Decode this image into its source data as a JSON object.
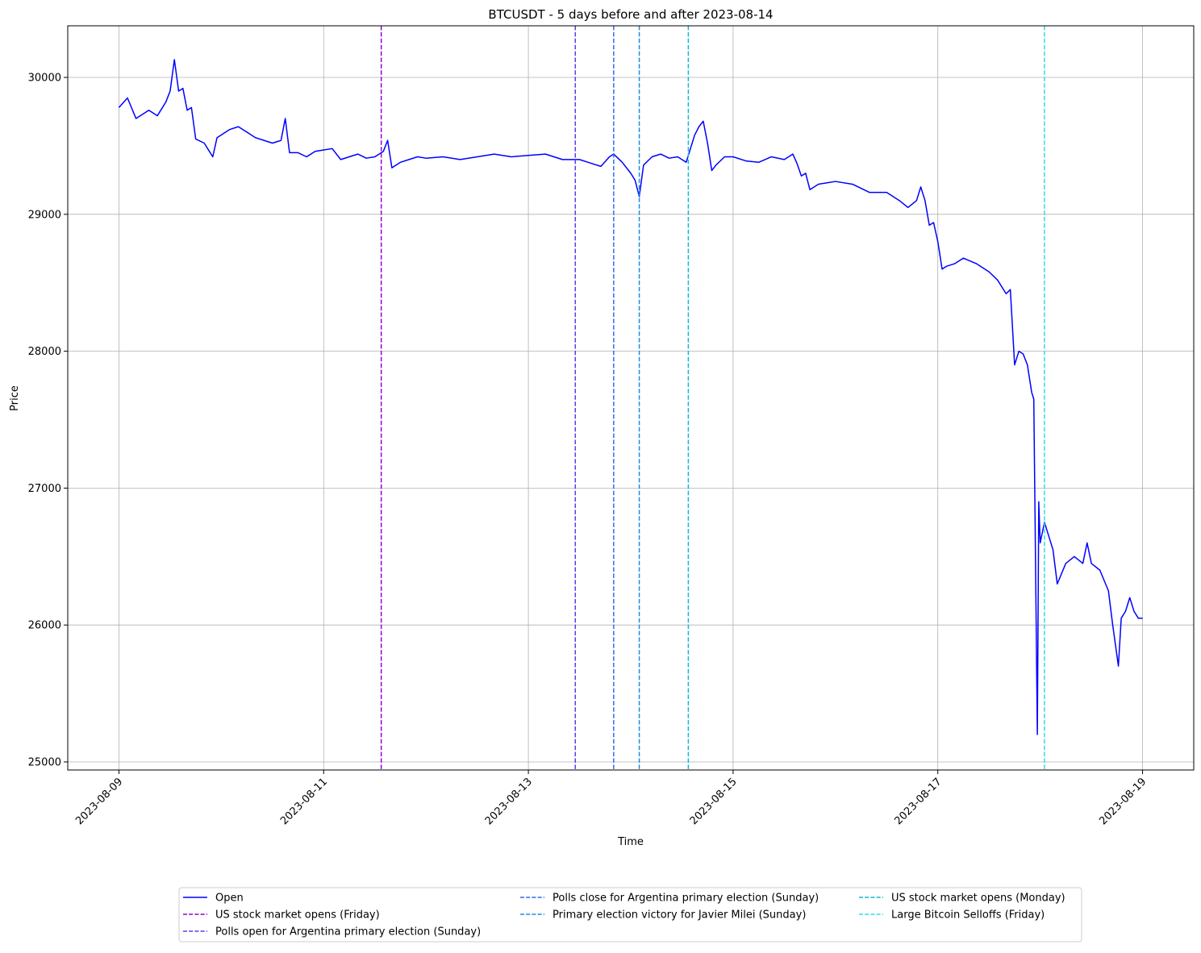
{
  "chart_data": {
    "type": "line",
    "title": "BTCUSDT - 5 days before and after 2023-08-14",
    "x_label": "Time",
    "y_label": "Price",
    "x": [
      "2023-08-09 00:00",
      "2023-08-09 02:00",
      "2023-08-09 04:00",
      "2023-08-09 07:00",
      "2023-08-09 09:00",
      "2023-08-09 11:00",
      "2023-08-09 12:00",
      "2023-08-09 13:00",
      "2023-08-09 14:00",
      "2023-08-09 15:00",
      "2023-08-09 16:00",
      "2023-08-09 17:00",
      "2023-08-09 18:00",
      "2023-08-09 20:00",
      "2023-08-09 22:00",
      "2023-08-09 23:00",
      "2023-08-10 00:00",
      "2023-08-10 02:00",
      "2023-08-10 04:00",
      "2023-08-10 06:00",
      "2023-08-10 08:00",
      "2023-08-10 10:00",
      "2023-08-10 12:00",
      "2023-08-10 14:00",
      "2023-08-10 15:00",
      "2023-08-10 16:00",
      "2023-08-10 18:00",
      "2023-08-10 20:00",
      "2023-08-10 22:00",
      "2023-08-11 00:00",
      "2023-08-11 02:00",
      "2023-08-11 04:00",
      "2023-08-11 06:00",
      "2023-08-11 08:00",
      "2023-08-11 10:00",
      "2023-08-11 12:00",
      "2023-08-11 14:00",
      "2023-08-11 15:00",
      "2023-08-11 16:00",
      "2023-08-11 18:00",
      "2023-08-11 20:00",
      "2023-08-11 22:00",
      "2023-08-12 00:00",
      "2023-08-12 04:00",
      "2023-08-12 08:00",
      "2023-08-12 12:00",
      "2023-08-12 16:00",
      "2023-08-12 20:00",
      "2023-08-13 00:00",
      "2023-08-13 04:00",
      "2023-08-13 08:00",
      "2023-08-13 12:00",
      "2023-08-13 14:00",
      "2023-08-13 17:00",
      "2023-08-13 19:00",
      "2023-08-13 20:00",
      "2023-08-13 22:00",
      "2023-08-14 00:00",
      "2023-08-14 01:00",
      "2023-08-14 02:00",
      "2023-08-14 03:00",
      "2023-08-14 05:00",
      "2023-08-14 07:00",
      "2023-08-14 09:00",
      "2023-08-14 11:00",
      "2023-08-14 13:00",
      "2023-08-14 15:00",
      "2023-08-14 16:00",
      "2023-08-14 17:00",
      "2023-08-14 18:00",
      "2023-08-14 19:00",
      "2023-08-14 20:00",
      "2023-08-14 22:00",
      "2023-08-15 00:00",
      "2023-08-15 03:00",
      "2023-08-15 06:00",
      "2023-08-15 09:00",
      "2023-08-15 12:00",
      "2023-08-15 14:00",
      "2023-08-15 15:00",
      "2023-08-15 16:00",
      "2023-08-15 17:00",
      "2023-08-15 18:00",
      "2023-08-15 20:00",
      "2023-08-15 22:00",
      "2023-08-16 00:00",
      "2023-08-16 04:00",
      "2023-08-16 08:00",
      "2023-08-16 12:00",
      "2023-08-16 15:00",
      "2023-08-16 17:00",
      "2023-08-16 19:00",
      "2023-08-16 20:00",
      "2023-08-16 21:00",
      "2023-08-16 22:00",
      "2023-08-16 23:00",
      "2023-08-17 00:00",
      "2023-08-17 01:00",
      "2023-08-17 02:00",
      "2023-08-17 04:00",
      "2023-08-17 06:00",
      "2023-08-17 09:00",
      "2023-08-17 12:00",
      "2023-08-17 14:00",
      "2023-08-17 16:00",
      "2023-08-17 17:00",
      "2023-08-17 18:00",
      "2023-08-17 19:00",
      "2023-08-17 20:00",
      "2023-08-17 21:00",
      "2023-08-17 22:00",
      "2023-08-17 22:30",
      "2023-08-17 23:20",
      "2023-08-17 23:40",
      "2023-08-18 00:00",
      "2023-08-18 01:00",
      "2023-08-18 02:00",
      "2023-08-18 03:00",
      "2023-08-18 04:00",
      "2023-08-18 06:00",
      "2023-08-18 08:00",
      "2023-08-18 10:00",
      "2023-08-18 11:00",
      "2023-08-18 12:00",
      "2023-08-18 14:00",
      "2023-08-18 16:00",
      "2023-08-18 17:00",
      "2023-08-18 18:20",
      "2023-08-18 19:00",
      "2023-08-18 20:00",
      "2023-08-18 21:00",
      "2023-08-18 22:00",
      "2023-08-18 23:00",
      "2023-08-19 00:00"
    ],
    "series": [
      {
        "name": "Open",
        "color": "#0000ff",
        "values": [
          29780,
          29850,
          29700,
          29760,
          29720,
          29820,
          29900,
          30130,
          29900,
          29920,
          29760,
          29780,
          29550,
          29520,
          29420,
          29560,
          29580,
          29620,
          29640,
          29600,
          29560,
          29540,
          29520,
          29540,
          29700,
          29450,
          29450,
          29420,
          29460,
          29470,
          29480,
          29400,
          29420,
          29440,
          29410,
          29420,
          29460,
          29540,
          29340,
          29380,
          29400,
          29420,
          29410,
          29420,
          29400,
          29420,
          29440,
          29420,
          29430,
          29440,
          29400,
          29400,
          29380,
          29350,
          29420,
          29440,
          29380,
          29300,
          29250,
          29130,
          29360,
          29420,
          29440,
          29410,
          29420,
          29380,
          29580,
          29640,
          29680,
          29520,
          29320,
          29360,
          29420,
          29420,
          29390,
          29380,
          29420,
          29400,
          29440,
          29370,
          29280,
          29300,
          29180,
          29220,
          29230,
          29240,
          29220,
          29160,
          29160,
          29100,
          29050,
          29100,
          29200,
          29100,
          28920,
          28940,
          28800,
          28600,
          28620,
          28640,
          28680,
          28640,
          28580,
          28520,
          28420,
          28450,
          27900,
          28000,
          27980,
          27900,
          27700,
          27650,
          25200,
          26900,
          26600,
          26750,
          26650,
          26550,
          26300,
          26450,
          26500,
          26450,
          26600,
          26450,
          26400,
          26250,
          26000,
          25700,
          26050,
          26100,
          26200,
          26100,
          26050,
          26050
        ]
      }
    ],
    "vlines": [
      {
        "x": "2023-08-11 13:30",
        "label": "US stock market opens (Friday)",
        "color": "#9400d3"
      },
      {
        "x": "2023-08-13 11:00",
        "label": "Polls open for Argentina primary election (Sunday)",
        "color": "#5b3cf0"
      },
      {
        "x": "2023-08-13 20:00",
        "label": "Polls close for Argentina primary election (Sunday)",
        "color": "#2f6cf0"
      },
      {
        "x": "2023-08-14 02:00",
        "label": "Primary election victory for Javier Milei (Sunday)",
        "color": "#1a8fe0"
      },
      {
        "x": "2023-08-14 13:30",
        "label": "US stock market opens (Monday)",
        "color": "#10b8d0"
      },
      {
        "x": "2023-08-18 01:00",
        "label": "Large Bitcoin Selloffs (Friday)",
        "color": "#30dcdc"
      }
    ],
    "xlim": [
      "2023-08-08 12:00",
      "2023-08-19 12:00"
    ],
    "xticks": [
      "2023-08-09",
      "2023-08-11",
      "2023-08-13",
      "2023-08-15",
      "2023-08-17",
      "2023-08-19"
    ],
    "ylim": [
      24941,
      30377
    ],
    "yticks": [
      25000,
      26000,
      27000,
      28000,
      29000,
      30000
    ],
    "grid": true,
    "legend": "lower center"
  }
}
